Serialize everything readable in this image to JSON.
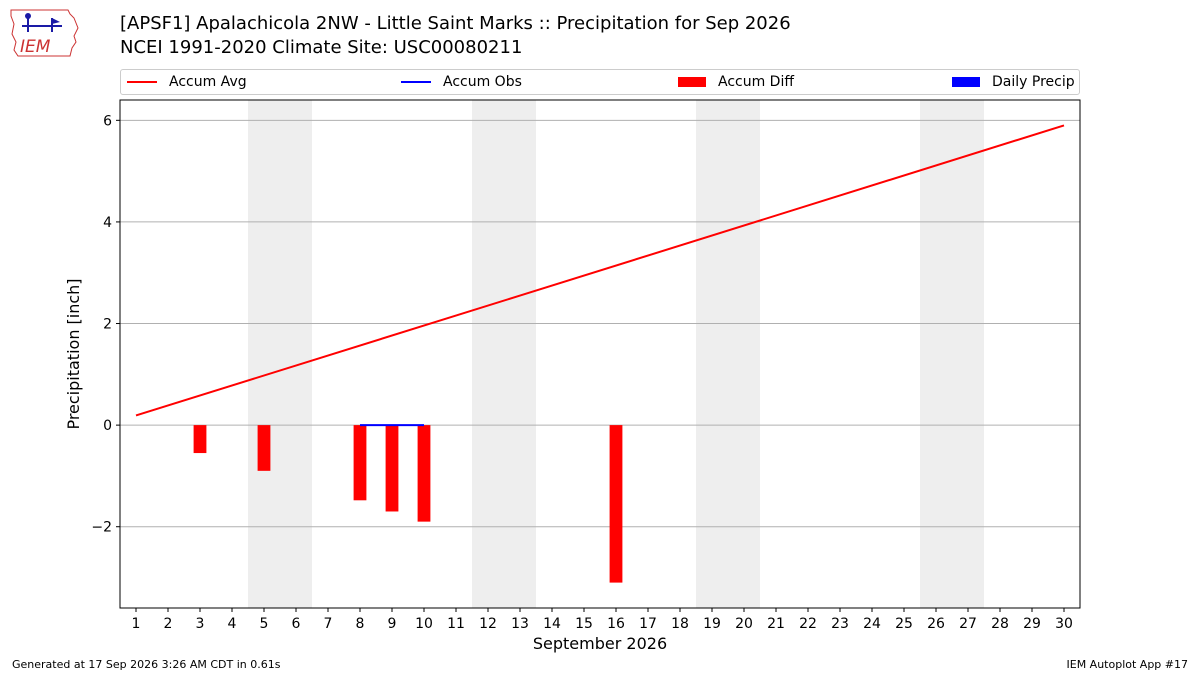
{
  "title_line1": "[APSF1] Apalachicola 2NW - Little Saint Marks :: Precipitation for Sep 2026",
  "title_line2": "NCEI 1991-2020 Climate Site: USC00080211",
  "logo_text": "IEM",
  "footer_left": "Generated at 17 Sep 2026 3:26 AM CDT in 0.61s",
  "footer_right": "IEM Autoplot App #17",
  "colors": {
    "accum_avg": "#ff0000",
    "accum_obs": "#0000ff",
    "accum_diff": "#ff0000",
    "daily_precip": "#0000ff",
    "weekend_band": "#eeeeee",
    "grid": "#b0b0b0"
  },
  "legend": {
    "accum_avg": "Accum Avg",
    "accum_obs": "Accum Obs",
    "accum_diff": "Accum Diff",
    "daily_precip": "Daily Precip"
  },
  "chart_data": {
    "type": "bar",
    "xlabel": "September 2026",
    "ylabel": "Precipitation [inch]",
    "xlim": [
      0.5,
      30.5
    ],
    "ylim": [
      -3.6,
      6.4
    ],
    "yticks": [
      -2,
      0,
      2,
      4,
      6
    ],
    "x_ticks": [
      1,
      2,
      3,
      4,
      5,
      6,
      7,
      8,
      9,
      10,
      11,
      12,
      13,
      14,
      15,
      16,
      17,
      18,
      19,
      20,
      21,
      22,
      23,
      24,
      25,
      26,
      27,
      28,
      29,
      30
    ],
    "grid": "horizontal",
    "weekend_bands": [
      [
        4.5,
        6.5
      ],
      [
        11.5,
        13.5
      ],
      [
        18.5,
        20.5
      ],
      [
        25.5,
        27.5
      ]
    ],
    "accum_avg": {
      "name": "Accum Avg",
      "x": [
        1,
        13,
        30
      ],
      "y": [
        0.19,
        2.55,
        5.9
      ]
    },
    "accum_obs": {
      "name": "Accum Obs",
      "x": [
        8,
        9,
        10
      ],
      "y": [
        0.0,
        0.0,
        0.0
      ]
    },
    "accum_diff": {
      "name": "Accum Diff",
      "x": [
        3,
        5,
        8,
        9,
        10,
        16
      ],
      "values": [
        -0.55,
        -0.9,
        -1.48,
        -1.7,
        -1.9,
        -3.1
      ]
    },
    "daily_precip": {
      "name": "Daily Precip",
      "x": [],
      "values": []
    }
  }
}
